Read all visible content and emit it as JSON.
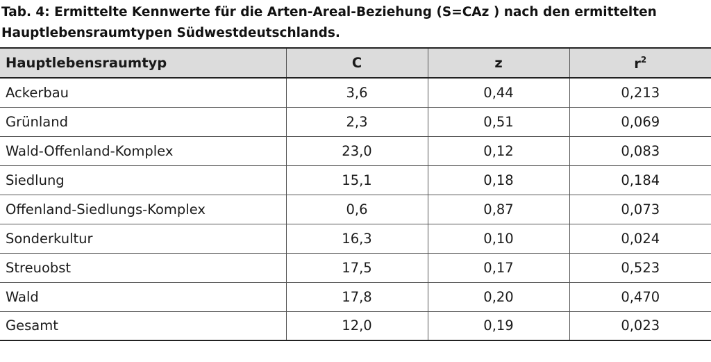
{
  "caption": {
    "line1": "Tab. 4: Ermittelte Kennwerte für die Arten-Areal-Beziehung (S=CAz ) nach den ermittelten",
    "line2": "Hauptlebensraumtypen Südwestdeutschlands."
  },
  "table": {
    "headers": {
      "col1": "Hauptlebensraumtyp",
      "col2": "C",
      "col3": "z",
      "col4_base": "r",
      "col4_sup": "2"
    },
    "rows": [
      {
        "typ": "Ackerbau",
        "c": "3,6",
        "z": "0,44",
        "r2": "0,213"
      },
      {
        "typ": "Grünland",
        "c": "2,3",
        "z": "0,51",
        "r2": "0,069"
      },
      {
        "typ": "Wald-Offenland-Komplex",
        "c": "23,0",
        "z": "0,12",
        "r2": "0,083"
      },
      {
        "typ": "Siedlung",
        "c": "15,1",
        "z": "0,18",
        "r2": "0,184"
      },
      {
        "typ": "Offenland-Siedlungs-Komplex",
        "c": "0,6",
        "z": "0,87",
        "r2": "0,073"
      },
      {
        "typ": "Sonderkultur",
        "c": "16,3",
        "z": "0,10",
        "r2": "0,024"
      },
      {
        "typ": "Streuobst",
        "c": "17,5",
        "z": "0,17",
        "r2": "0,523"
      },
      {
        "typ": "Wald",
        "c": "17,8",
        "z": "0,20",
        "r2": "0,470"
      },
      {
        "typ": "Gesamt",
        "c": "12,0",
        "z": "0,19",
        "r2": "0,023"
      }
    ]
  }
}
